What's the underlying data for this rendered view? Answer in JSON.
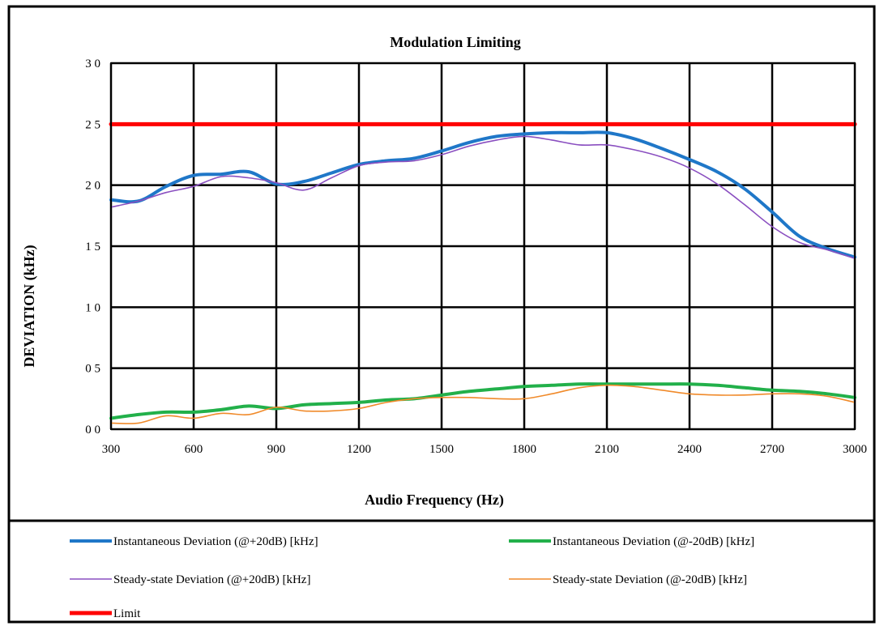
{
  "chart_data": {
    "type": "line",
    "title": "Modulation Limiting",
    "xlabel": "Audio Frequency (Hz)",
    "ylabel": "DEVIATION (kHz)",
    "xlim": [
      300,
      3000
    ],
    "ylim": [
      0,
      3.0
    ],
    "grid": true,
    "legend_position": "bottom",
    "x_ticks": [
      "300",
      "600",
      "900",
      "1200",
      "1500",
      "1800",
      "2100",
      "2400",
      "2700",
      "3000"
    ],
    "y_ticks": [
      "0 0",
      "0 5",
      "1 0",
      "1 5",
      "2 0",
      "2 5",
      "3 0"
    ],
    "x": [
      300,
      400,
      500,
      600,
      700,
      800,
      900,
      1000,
      1100,
      1200,
      1300,
      1400,
      1500,
      1600,
      1700,
      1800,
      1900,
      2000,
      2100,
      2200,
      2300,
      2400,
      2500,
      2600,
      2700,
      2800,
      2900,
      3000
    ],
    "series": [
      {
        "name": "Instantaneous Deviation (@+20dB) [kHz]",
        "color": "#1f77c8",
        "values": [
          1.88,
          1.87,
          1.99,
          2.08,
          2.09,
          2.11,
          2.01,
          2.03,
          2.1,
          2.17,
          2.2,
          2.22,
          2.28,
          2.35,
          2.4,
          2.42,
          2.43,
          2.43,
          2.43,
          2.38,
          2.3,
          2.21,
          2.11,
          1.97,
          1.78,
          1.58,
          1.48,
          1.41
        ]
      },
      {
        "name": "Instantaneous Deviation (@-20dB) [kHz]",
        "color": "#22b04a",
        "values": [
          0.09,
          0.12,
          0.14,
          0.14,
          0.16,
          0.19,
          0.17,
          0.2,
          0.21,
          0.22,
          0.24,
          0.25,
          0.28,
          0.31,
          0.33,
          0.35,
          0.36,
          0.37,
          0.37,
          0.37,
          0.37,
          0.37,
          0.36,
          0.34,
          0.32,
          0.31,
          0.29,
          0.26
        ]
      },
      {
        "name": "Steady-state Deviation (@+20dB) [kHz]",
        "color": "#8a4fc0",
        "values": [
          1.82,
          1.87,
          1.94,
          1.99,
          2.07,
          2.06,
          2.02,
          1.96,
          2.06,
          2.16,
          2.19,
          2.2,
          2.25,
          2.32,
          2.37,
          2.4,
          2.37,
          2.33,
          2.33,
          2.29,
          2.23,
          2.14,
          2.01,
          1.84,
          1.66,
          1.53,
          1.47,
          1.4
        ]
      },
      {
        "name": "Steady-state Deviation (@-20dB) [kHz]",
        "color": "#f08a2a",
        "values": [
          0.05,
          0.05,
          0.11,
          0.09,
          0.13,
          0.12,
          0.18,
          0.15,
          0.15,
          0.17,
          0.22,
          0.25,
          0.26,
          0.26,
          0.25,
          0.25,
          0.29,
          0.34,
          0.36,
          0.35,
          0.32,
          0.29,
          0.28,
          0.28,
          0.29,
          0.29,
          0.27,
          0.22
        ]
      },
      {
        "name": "Limit",
        "color": "#ff0000",
        "values": [
          2.5,
          2.5,
          2.5,
          2.5,
          2.5,
          2.5,
          2.5,
          2.5,
          2.5,
          2.5,
          2.5,
          2.5,
          2.5,
          2.5,
          2.5,
          2.5,
          2.5,
          2.5,
          2.5,
          2.5,
          2.5,
          2.5,
          2.5,
          2.5,
          2.5,
          2.5,
          2.5,
          2.5
        ]
      }
    ]
  }
}
